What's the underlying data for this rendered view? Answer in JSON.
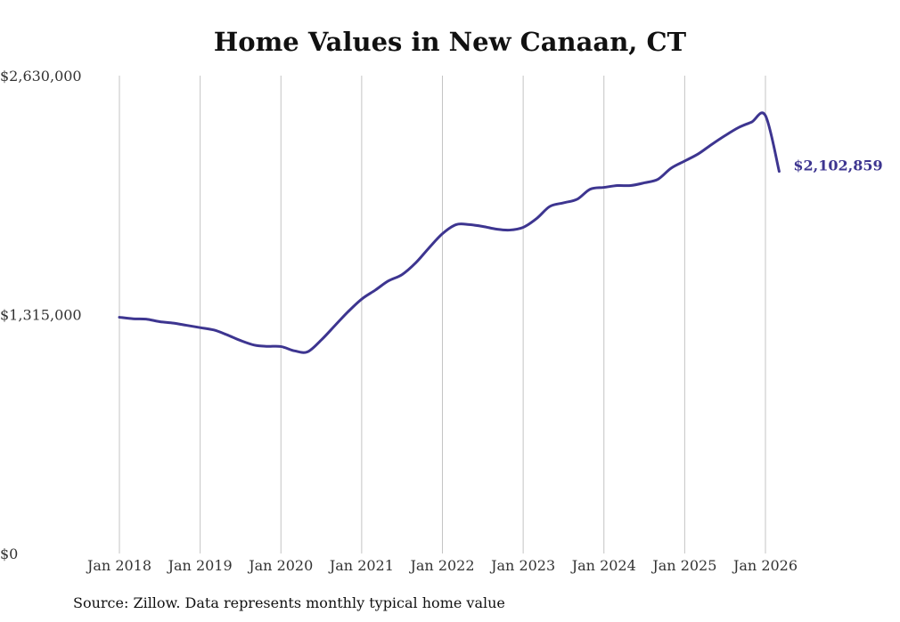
{
  "chart_data": {
    "type": "line",
    "title": "Home Values in New Canaan, CT",
    "xlabel": "",
    "ylabel": "",
    "source": "Source: Zillow. Data represents monthly typical home value",
    "ylim": [
      0,
      2630000
    ],
    "y_ticks": [
      {
        "value": 0,
        "label": "$0"
      },
      {
        "value": 1315000,
        "label": "$1,315,000"
      },
      {
        "value": 2630000,
        "label": "$2,630,000"
      }
    ],
    "x_ticks": [
      {
        "value": 2018,
        "label": "Jan 2018"
      },
      {
        "value": 2019,
        "label": "Jan 2019"
      },
      {
        "value": 2020,
        "label": "Jan 2020"
      },
      {
        "value": 2021,
        "label": "Jan 2021"
      },
      {
        "value": 2022,
        "label": "Jan 2022"
      },
      {
        "value": 2023,
        "label": "Jan 2023"
      },
      {
        "value": 2024,
        "label": "Jan 2024"
      },
      {
        "value": 2025,
        "label": "Jan 2025"
      },
      {
        "value": 2026,
        "label": "Jan 2026"
      }
    ],
    "xlim": [
      2018,
      2026.2
    ],
    "grid": true,
    "line_color": "#3d3590",
    "end_label": "$2,102,859",
    "series": [
      {
        "name": "Typical home value",
        "x": [
          2018.0,
          2018.17,
          2018.33,
          2018.5,
          2018.67,
          2018.83,
          2019.0,
          2019.17,
          2019.33,
          2019.5,
          2019.67,
          2019.83,
          2020.0,
          2020.17,
          2020.33,
          2020.5,
          2020.67,
          2020.83,
          2021.0,
          2021.17,
          2021.33,
          2021.5,
          2021.67,
          2021.83,
          2022.0,
          2022.17,
          2022.33,
          2022.5,
          2022.67,
          2022.83,
          2023.0,
          2023.17,
          2023.33,
          2023.5,
          2023.67,
          2023.83,
          2024.0,
          2024.17,
          2024.33,
          2024.5,
          2024.67,
          2024.83,
          2025.0,
          2025.17,
          2025.33,
          2025.5,
          2025.67,
          2025.83,
          2026.0,
          2026.17
        ],
        "values": [
          1300000,
          1292000,
          1290000,
          1276000,
          1268000,
          1256000,
          1243000,
          1230000,
          1204000,
          1172000,
          1147000,
          1140000,
          1139000,
          1115000,
          1110000,
          1175000,
          1255000,
          1330000,
          1400000,
          1450000,
          1500000,
          1535000,
          1600000,
          1680000,
          1760000,
          1810000,
          1810000,
          1800000,
          1785000,
          1780000,
          1795000,
          1845000,
          1910000,
          1930000,
          1950000,
          2005000,
          2015000,
          2025000,
          2025000,
          2040000,
          2060000,
          2120000,
          2160000,
          2200000,
          2250000,
          2300000,
          2345000,
          2375000,
          2410000,
          2102859
        ]
      }
    ]
  }
}
